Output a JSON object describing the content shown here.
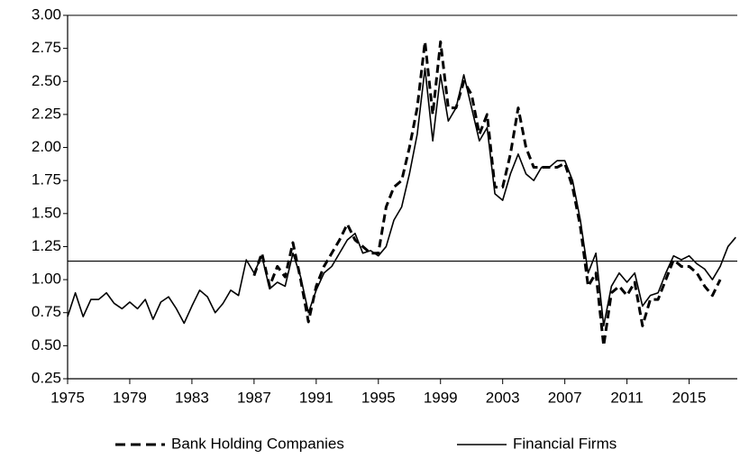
{
  "chart_data": {
    "type": "line",
    "x": [
      1975,
      1975.5,
      1976,
      1976.5,
      1977,
      1977.5,
      1978,
      1978.5,
      1979,
      1979.5,
      1980,
      1980.5,
      1981,
      1981.5,
      1982,
      1982.5,
      1983,
      1983.5,
      1984,
      1984.5,
      1985,
      1985.5,
      1986,
      1986.5,
      1987,
      1987.5,
      1988,
      1988.5,
      1989,
      1989.5,
      1990,
      1990.5,
      1991,
      1991.5,
      1992,
      1992.5,
      1993,
      1993.5,
      1994,
      1994.5,
      1995,
      1995.5,
      1996,
      1996.5,
      1997,
      1997.5,
      1998,
      1998.5,
      1999,
      1999.5,
      2000,
      2000.5,
      2001,
      2001.5,
      2002,
      2002.5,
      2003,
      2003.5,
      2004,
      2004.5,
      2005,
      2005.5,
      2006,
      2006.5,
      2007,
      2007.5,
      2008,
      2008.5,
      2009,
      2009.5,
      2010,
      2010.5,
      2011,
      2011.5,
      2012,
      2012.5,
      2013,
      2013.5,
      2014,
      2014.5,
      2015,
      2015.5,
      2016,
      2016.5,
      2017,
      2017.5,
      2018
    ],
    "series": [
      {
        "name": "Bank Holding Companies",
        "color": "#000000",
        "dashed": true,
        "values": [
          null,
          null,
          null,
          null,
          null,
          null,
          null,
          null,
          null,
          null,
          null,
          null,
          null,
          null,
          null,
          null,
          null,
          null,
          null,
          null,
          null,
          null,
          null,
          null,
          1.03,
          1.2,
          0.95,
          1.1,
          1.02,
          1.28,
          1.0,
          0.68,
          0.95,
          1.1,
          1.2,
          1.3,
          1.42,
          1.3,
          1.25,
          1.2,
          1.2,
          1.55,
          1.7,
          1.75,
          2.0,
          2.3,
          2.8,
          2.25,
          2.8,
          2.3,
          2.3,
          2.5,
          2.4,
          2.1,
          2.25,
          1.7,
          1.7,
          1.95,
          2.3,
          2.0,
          1.85,
          1.85,
          1.85,
          1.85,
          1.88,
          1.7,
          1.4,
          0.95,
          1.05,
          0.5,
          0.9,
          0.95,
          0.88,
          0.98,
          0.65,
          0.85,
          0.85,
          1.0,
          1.15,
          1.1,
          1.1,
          1.05,
          0.95,
          0.88,
          1.0,
          null,
          null
        ]
      },
      {
        "name": "Financial Firms",
        "color": "#000000",
        "dashed": false,
        "values": [
          0.72,
          0.9,
          0.72,
          0.85,
          0.85,
          0.9,
          0.82,
          0.78,
          0.83,
          0.78,
          0.85,
          0.7,
          0.83,
          0.87,
          0.78,
          0.67,
          0.8,
          0.92,
          0.87,
          0.75,
          0.82,
          0.92,
          0.88,
          1.15,
          1.05,
          1.18,
          0.93,
          0.98,
          0.95,
          1.2,
          1.02,
          0.75,
          0.92,
          1.05,
          1.1,
          1.2,
          1.3,
          1.35,
          1.2,
          1.22,
          1.18,
          1.25,
          1.45,
          1.55,
          1.8,
          2.1,
          2.6,
          2.05,
          2.55,
          2.2,
          2.3,
          2.55,
          2.3,
          2.05,
          2.15,
          1.65,
          1.6,
          1.8,
          1.95,
          1.8,
          1.75,
          1.85,
          1.85,
          1.9,
          1.9,
          1.75,
          1.45,
          1.05,
          1.2,
          0.65,
          0.95,
          1.05,
          0.98,
          1.05,
          0.8,
          0.88,
          0.9,
          1.05,
          1.18,
          1.15,
          1.18,
          1.12,
          1.08,
          1.0,
          1.1,
          1.25,
          1.32
        ]
      }
    ],
    "reference_line": 1.14,
    "xlim": [
      1975,
      2018.1
    ],
    "xticks": [
      1975,
      1979,
      1983,
      1987,
      1991,
      1995,
      1999,
      2003,
      2007,
      2011,
      2015
    ],
    "ylim": [
      0.25,
      3
    ],
    "yticks": [
      {
        "value": 0.25,
        "label": "0.25"
      },
      {
        "value": 0.5,
        "label": "0.50"
      },
      {
        "value": 0.75,
        "label": "0.75"
      },
      {
        "value": 1,
        "label": "1.00"
      },
      {
        "value": 1.25,
        "label": "1.25"
      },
      {
        "value": 1.5,
        "label": "1.50"
      },
      {
        "value": 1.75,
        "label": "1.75"
      },
      {
        "value": 2,
        "label": "2.00"
      },
      {
        "value": 2.25,
        "label": "2.25"
      },
      {
        "value": 2.5,
        "label": "2.50"
      },
      {
        "value": 2.75,
        "label": "2.75"
      },
      {
        "value": 3,
        "label": "3.00"
      }
    ],
    "legend": "bottom"
  }
}
